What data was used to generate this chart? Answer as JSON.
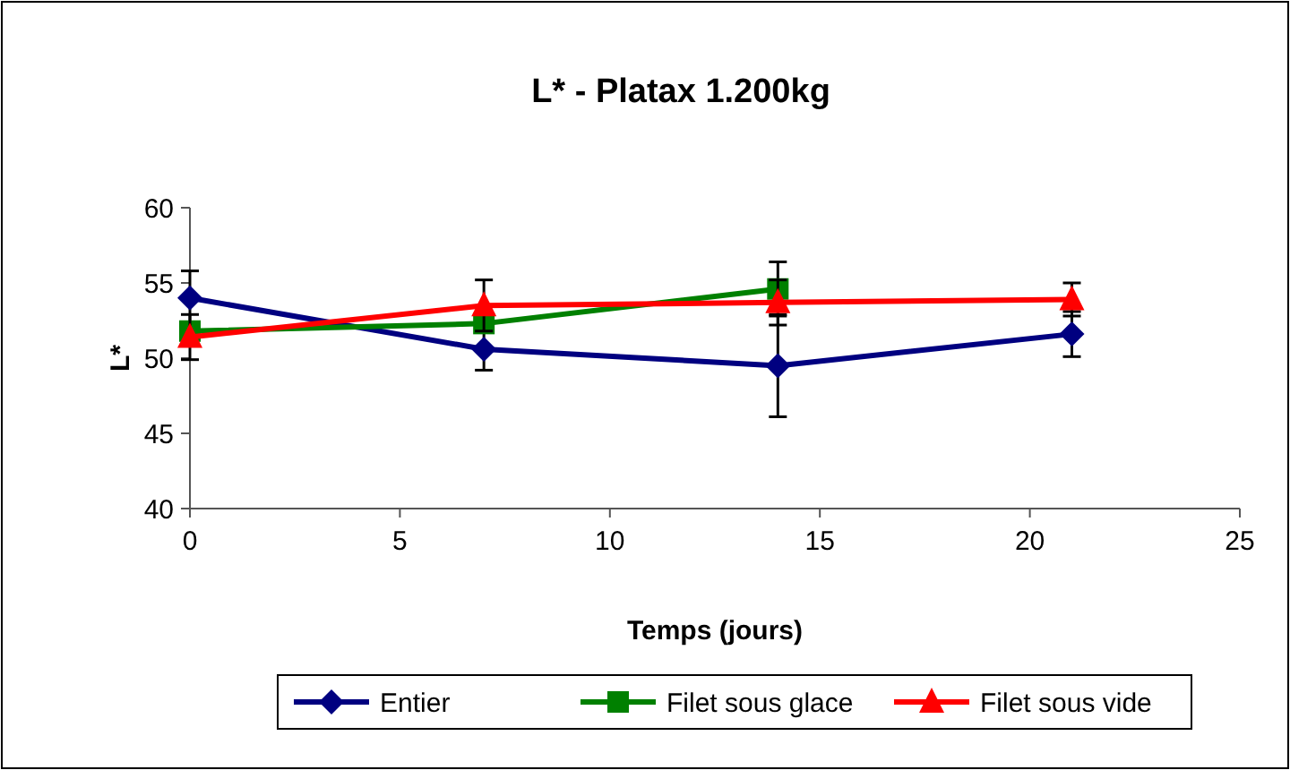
{
  "chart_data": {
    "type": "line",
    "title": "L* - Platax 1.200kg",
    "xlabel": "Temps (jours)",
    "ylabel": "L*",
    "x": [
      0,
      7,
      14,
      21
    ],
    "xlim": [
      0,
      25
    ],
    "xticks": [
      0,
      5,
      10,
      15,
      20,
      25
    ],
    "ylim": [
      40,
      60
    ],
    "yticks": [
      40,
      45,
      50,
      55,
      60
    ],
    "grid": false,
    "legend": "bottom",
    "line_style": "solid",
    "series": [
      {
        "name": "Entier",
        "color": "#000080",
        "marker": "diamond",
        "values": [
          54,
          50.6,
          49.5,
          51.6
        ],
        "errors": [
          1.8,
          1.4,
          3.4,
          1.5
        ]
      },
      {
        "name": "Filet sous glace",
        "color": "#008000",
        "marker": "square",
        "x": [
          0,
          7,
          14
        ],
        "values": [
          51.8,
          52.3,
          54.6
        ],
        "errors": [
          null,
          null,
          1.8
        ]
      },
      {
        "name": "Filet sous vide",
        "color": "#ff0000",
        "marker": "triangle",
        "values": [
          51.4,
          53.5,
          53.7,
          53.9
        ],
        "errors": [
          1.5,
          1.7,
          1.5,
          1.1
        ]
      }
    ]
  }
}
